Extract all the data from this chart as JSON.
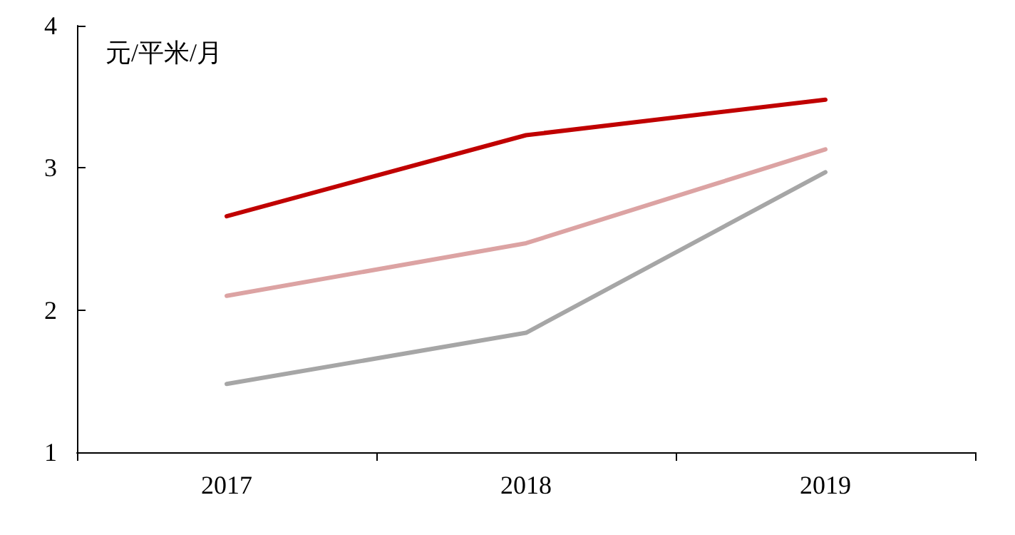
{
  "chart_data": {
    "type": "line",
    "ylabel": "元/平米/月",
    "categories": [
      "2017",
      "2018",
      "2019"
    ],
    "series": [
      {
        "color": "#c00000",
        "values": [
          2.66,
          3.23,
          3.48
        ]
      },
      {
        "color": "#dca3a3",
        "values": [
          2.1,
          2.47,
          3.13
        ]
      },
      {
        "color": "#a6a6a6",
        "values": [
          1.48,
          1.84,
          2.97
        ]
      }
    ],
    "ylim": [
      1,
      4
    ],
    "yticks": [
      1,
      2,
      3,
      4
    ],
    "grid": false,
    "marker": "none",
    "line_style": "solid"
  }
}
